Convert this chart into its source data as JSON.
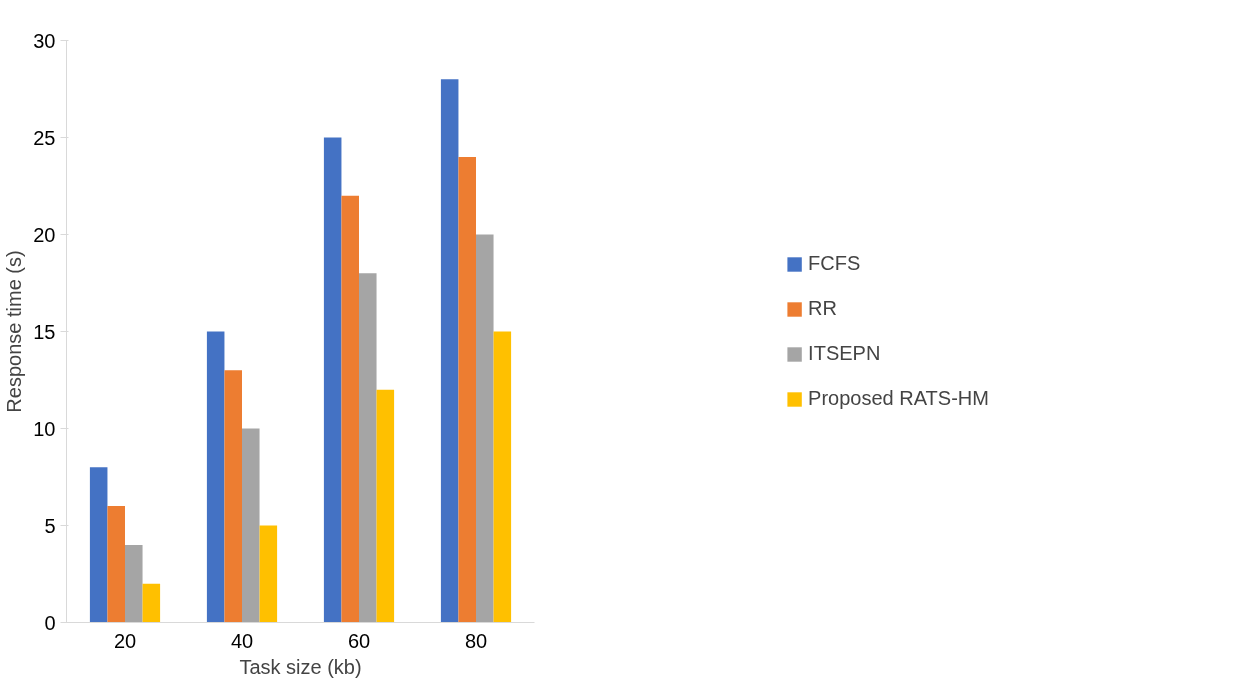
{
  "chart_data": {
    "type": "bar",
    "xlabel": "Task size (kb)",
    "ylabel": "Response time (s)",
    "categories": [
      "20",
      "40",
      "60",
      "80"
    ],
    "series": [
      {
        "name": "FCFS",
        "color": "#4472c4",
        "values": [
          8,
          15,
          25,
          28
        ]
      },
      {
        "name": "RR",
        "color": "#ed7d31",
        "values": [
          6,
          13,
          22,
          24
        ]
      },
      {
        "name": "ITSEPN",
        "color": "#a5a5a5",
        "values": [
          4,
          10,
          18,
          20
        ]
      },
      {
        "name": "Proposed RATS-HM",
        "color": "#ffc000",
        "values": [
          2,
          5,
          12,
          15
        ]
      }
    ],
    "ylim": [
      0,
      30
    ],
    "yticks": [
      0,
      5,
      10,
      15,
      20,
      25,
      30
    ],
    "grid": false,
    "legend": "right"
  }
}
